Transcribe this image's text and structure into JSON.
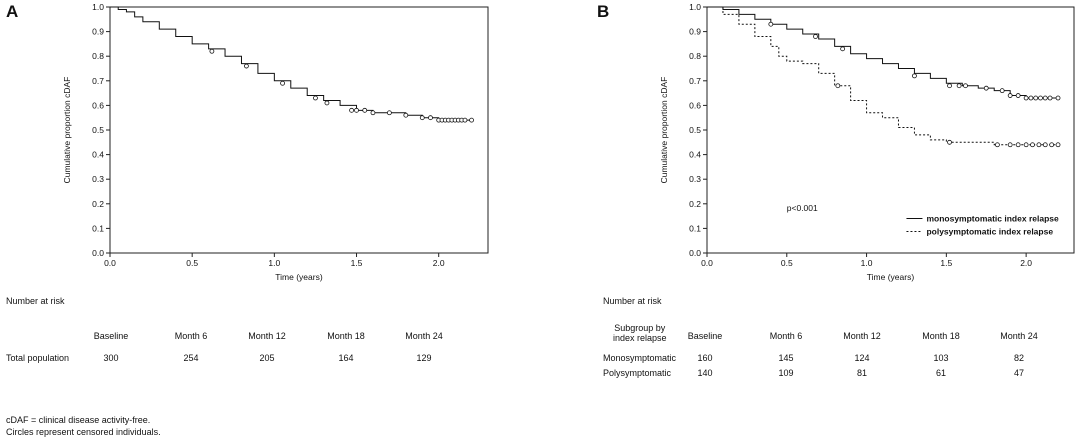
{
  "panel_a": {
    "letter": "A",
    "risk_title": "Number at risk",
    "columns": [
      "Baseline",
      "Month 6",
      "Month 12",
      "Month 18",
      "Month 24"
    ],
    "rows": [
      {
        "label": "Total population",
        "values": [
          "300",
          "254",
          "205",
          "164",
          "129"
        ]
      }
    ]
  },
  "panel_b": {
    "letter": "B",
    "risk_title": "Number at risk",
    "subgroup_header": [
      "Subgroup by",
      "index relapse"
    ],
    "columns": [
      "Baseline",
      "Month 6",
      "Month 12",
      "Month 18",
      "Month 24"
    ],
    "rows": [
      {
        "label": "Monosymptomatic",
        "values": [
          "160",
          "145",
          "124",
          "103",
          "82"
        ]
      },
      {
        "label": "Polysymptomatic",
        "values": [
          "140",
          "109",
          "81",
          "61",
          "47"
        ]
      }
    ]
  },
  "footnotes": [
    "cDAF = clinical disease activity-free.",
    "Circles represent censored individuals."
  ],
  "chart_data": [
    {
      "type": "line",
      "title": "",
      "xlabel": "Time (years)",
      "ylabel": "Cumulative proportion cDAF",
      "xlim": [
        0,
        2.3
      ],
      "ylim": [
        0,
        1
      ],
      "xticks": [
        "0.0",
        "0.5",
        "1.0",
        "1.5",
        "2.0"
      ],
      "yticks": [
        "0.0",
        "0.1",
        "0.2",
        "0.3",
        "0.4",
        "0.5",
        "0.6",
        "0.7",
        "0.8",
        "0.9",
        "1.0"
      ],
      "series": [
        {
          "name": "Total population",
          "style": "solid",
          "x": [
            0,
            0.05,
            0.1,
            0.15,
            0.2,
            0.3,
            0.4,
            0.5,
            0.6,
            0.7,
            0.8,
            0.9,
            1.0,
            1.1,
            1.2,
            1.3,
            1.4,
            1.5,
            1.6,
            1.7,
            1.8,
            1.9,
            2.0,
            2.2
          ],
          "y": [
            1.0,
            0.99,
            0.98,
            0.96,
            0.94,
            0.91,
            0.88,
            0.85,
            0.83,
            0.8,
            0.77,
            0.73,
            0.7,
            0.67,
            0.64,
            0.62,
            0.6,
            0.58,
            0.57,
            0.57,
            0.56,
            0.55,
            0.54,
            0.54
          ],
          "censored_x": [
            0.62,
            0.83,
            1.05,
            1.25,
            1.32,
            1.47,
            1.5,
            1.55,
            1.6,
            1.7,
            1.8,
            1.9,
            1.95,
            2.0,
            2.02,
            2.04,
            2.06,
            2.08,
            2.1,
            2.12,
            2.14,
            2.16,
            2.2
          ],
          "censored_y": [
            0.82,
            0.76,
            0.69,
            0.63,
            0.61,
            0.58,
            0.58,
            0.58,
            0.57,
            0.57,
            0.56,
            0.55,
            0.55,
            0.54,
            0.54,
            0.54,
            0.54,
            0.54,
            0.54,
            0.54,
            0.54,
            0.54,
            0.54
          ]
        }
      ]
    },
    {
      "type": "line",
      "title": "",
      "xlabel": "Time (years)",
      "ylabel": "Cumulative proportion cDAF",
      "xlim": [
        0,
        2.3
      ],
      "ylim": [
        0,
        1
      ],
      "xticks": [
        "0.0",
        "0.5",
        "1.0",
        "1.5",
        "2.0"
      ],
      "yticks": [
        "0.0",
        "0.1",
        "0.2",
        "0.3",
        "0.4",
        "0.5",
        "0.6",
        "0.7",
        "0.8",
        "0.9",
        "1.0"
      ],
      "annotation": "p<0.001",
      "legend_position": "bottom-right",
      "series": [
        {
          "name": "monosymptomatic index relapse",
          "style": "solid",
          "x": [
            0,
            0.1,
            0.2,
            0.3,
            0.4,
            0.5,
            0.6,
            0.7,
            0.8,
            0.9,
            1.0,
            1.1,
            1.2,
            1.3,
            1.4,
            1.5,
            1.6,
            1.7,
            1.8,
            1.9,
            2.0,
            2.2
          ],
          "y": [
            1.0,
            0.99,
            0.97,
            0.95,
            0.93,
            0.91,
            0.89,
            0.87,
            0.84,
            0.81,
            0.79,
            0.77,
            0.75,
            0.73,
            0.71,
            0.69,
            0.68,
            0.67,
            0.66,
            0.64,
            0.63,
            0.63
          ],
          "censored_x": [
            0.4,
            0.68,
            0.85,
            1.3,
            1.52,
            1.58,
            1.62,
            1.75,
            1.85,
            1.9,
            1.95,
            2.0,
            2.03,
            2.06,
            2.09,
            2.12,
            2.15,
            2.2
          ],
          "censored_y": [
            0.93,
            0.88,
            0.83,
            0.72,
            0.68,
            0.68,
            0.68,
            0.67,
            0.66,
            0.64,
            0.64,
            0.63,
            0.63,
            0.63,
            0.63,
            0.63,
            0.63,
            0.63
          ]
        },
        {
          "name": "polysymptomatic index relapse",
          "style": "dashed",
          "x": [
            0,
            0.1,
            0.2,
            0.3,
            0.4,
            0.45,
            0.5,
            0.6,
            0.7,
            0.8,
            0.9,
            1.0,
            1.1,
            1.2,
            1.3,
            1.4,
            1.5,
            1.6,
            1.8,
            2.0,
            2.2
          ],
          "y": [
            1.0,
            0.97,
            0.93,
            0.88,
            0.84,
            0.8,
            0.78,
            0.77,
            0.73,
            0.68,
            0.62,
            0.57,
            0.55,
            0.51,
            0.48,
            0.46,
            0.45,
            0.45,
            0.44,
            0.44,
            0.44
          ],
          "censored_x": [
            0.82,
            1.52,
            1.82,
            1.9,
            1.95,
            2.0,
            2.04,
            2.08,
            2.12,
            2.16,
            2.2
          ],
          "censored_y": [
            0.68,
            0.45,
            0.44,
            0.44,
            0.44,
            0.44,
            0.44,
            0.44,
            0.44,
            0.44,
            0.44
          ]
        }
      ]
    }
  ]
}
